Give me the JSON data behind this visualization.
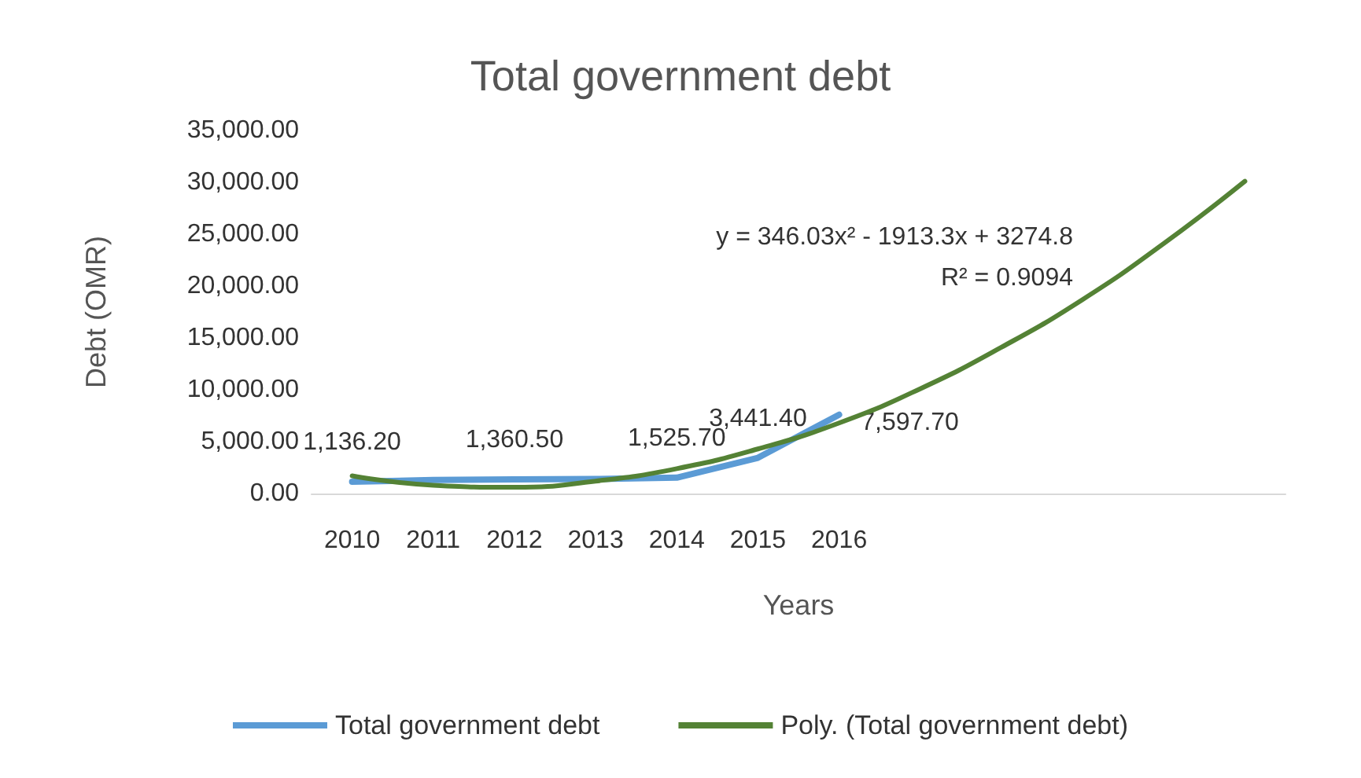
{
  "chart_data": {
    "type": "line",
    "title": "Total government debt",
    "xlabel": "Years",
    "ylabel": "Debt (OMR)",
    "categories": [
      "2010",
      "2011",
      "2012",
      "2013",
      "2014",
      "2015",
      "2016",
      null,
      null,
      null,
      null,
      null
    ],
    "series": [
      {
        "name": "Total government debt",
        "color": "#5b9bd5",
        "values": [
          1136.2,
          1300,
          1360.5,
          1400,
          1525.7,
          3441.4,
          7597.7,
          null,
          null,
          null,
          null,
          null
        ],
        "value_labels": [
          "1,136.20",
          null,
          "1,360.50",
          null,
          "1,525.70",
          "3,441.40",
          "7,597.70",
          null,
          null,
          null,
          null,
          null
        ]
      },
      {
        "name": "Poly. (Total government debt)",
        "color": "#548235",
        "values": [
          1700,
          800,
          600,
          1200,
          2400,
          4300,
          6800,
          10100,
          14100,
          18700,
          24100,
          30100
        ]
      }
    ],
    "ylim": [
      0,
      35000
    ],
    "yticks": [
      {
        "value": 0,
        "label": "0.00"
      },
      {
        "value": 5000,
        "label": "5,000.00"
      },
      {
        "value": 10000,
        "label": "10,000.00"
      },
      {
        "value": 15000,
        "label": "15,000.00"
      },
      {
        "value": 20000,
        "label": "20,000.00"
      },
      {
        "value": 25000,
        "label": "25,000.00"
      },
      {
        "value": 30000,
        "label": "30,000.00"
      },
      {
        "value": 35000,
        "label": "35,000.00"
      }
    ],
    "grid": false,
    "legend": "bottom",
    "marker": "none",
    "line_style": "solid",
    "annotations": [
      "y = 346.03x² - 1913.3x + 3274.8",
      "R² = 0.9094"
    ]
  }
}
